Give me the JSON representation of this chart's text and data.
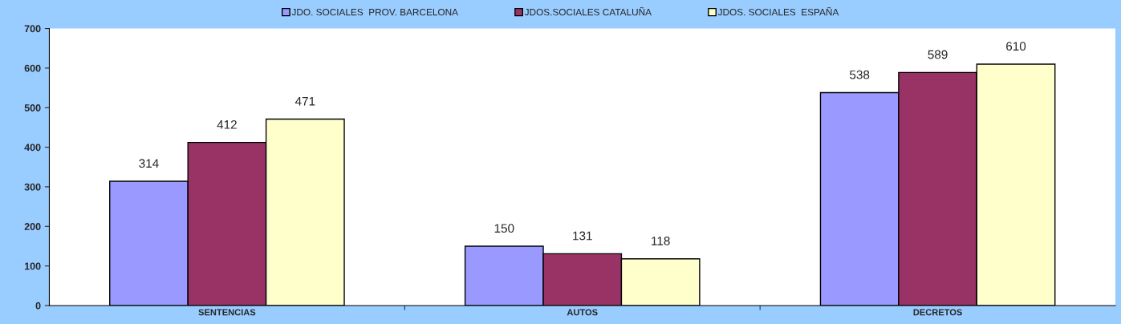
{
  "chart_data": {
    "type": "bar",
    "categories": [
      "SENTENCIAS",
      "AUTOS",
      "DECRETOS"
    ],
    "series": [
      {
        "name": "JDO. SOCIALES  PROV. BARCELONA",
        "color": "#9999ff",
        "values": [
          314,
          150,
          538
        ]
      },
      {
        "name": "JDOS.SOCIALES CATALUÑA",
        "color": "#993366",
        "values": [
          412,
          131,
          589
        ]
      },
      {
        "name": "JDOS. SOCIALES  ESPAÑA",
        "color": "#ffffcc",
        "values": [
          471,
          118,
          610
        ]
      }
    ],
    "ylim": [
      0,
      700
    ],
    "yticks": [
      0,
      100,
      200,
      300,
      400,
      500,
      600,
      700
    ],
    "grid": false,
    "legend": "top",
    "data_labels": true
  }
}
